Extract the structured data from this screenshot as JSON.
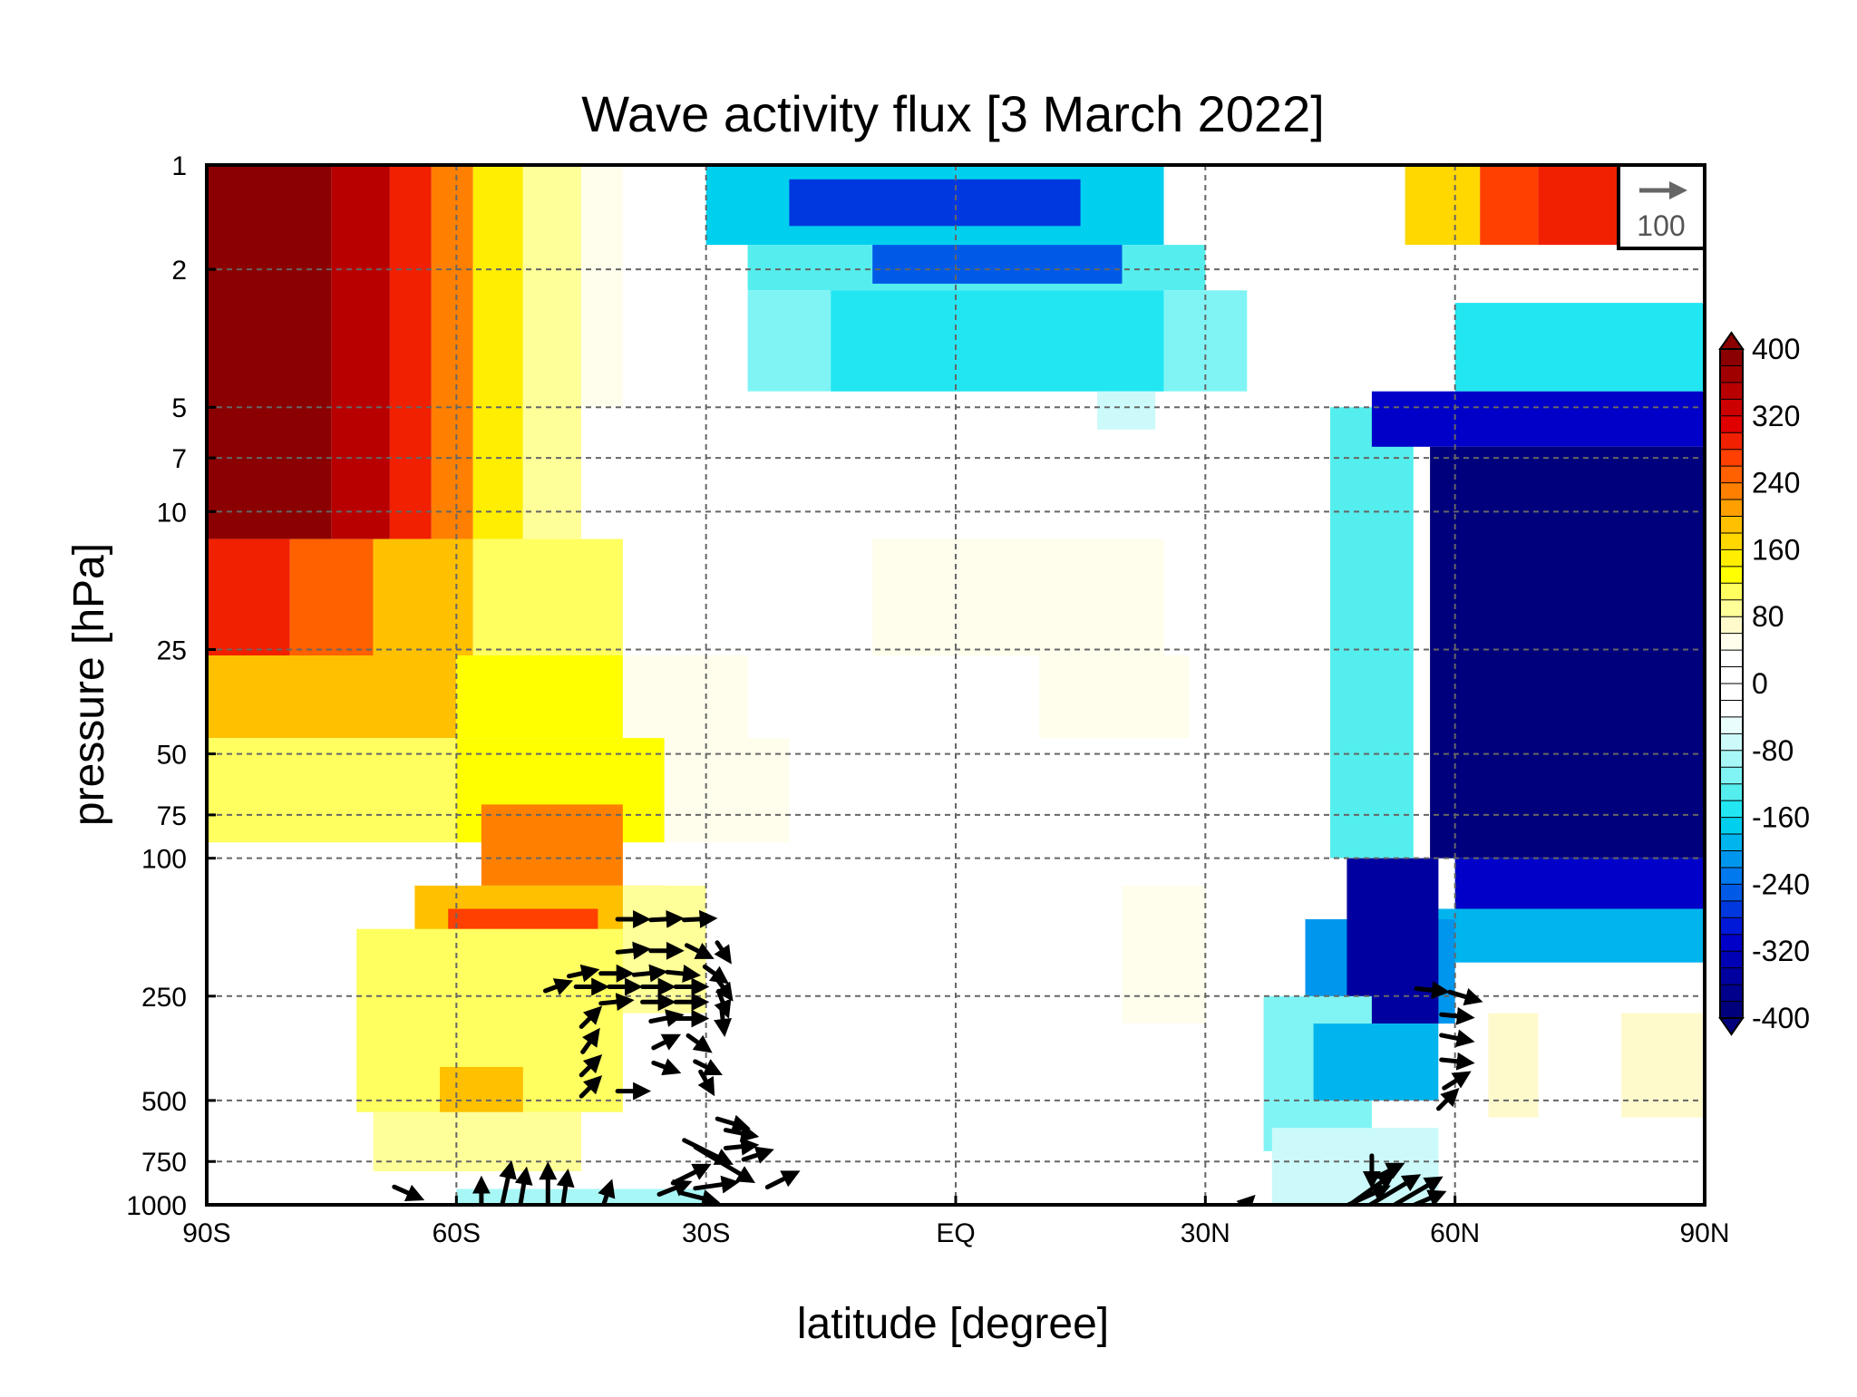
{
  "chart_data": {
    "type": "heatmap",
    "title": "Wave activity flux [3 March 2022]",
    "xlabel": "latitude [degree]",
    "ylabel": "pressure [hPa]",
    "x_range": [
      -90,
      90
    ],
    "y_range_hPa": [
      1000,
      1
    ],
    "y_scale": "log",
    "grid": true,
    "x_ticks": [
      {
        "value": -90,
        "label": "90S"
      },
      {
        "value": -60,
        "label": "60S"
      },
      {
        "value": -30,
        "label": "30S"
      },
      {
        "value": 0,
        "label": "EQ"
      },
      {
        "value": 30,
        "label": "30N"
      },
      {
        "value": 60,
        "label": "60N"
      },
      {
        "value": 90,
        "label": "90N"
      }
    ],
    "y_ticks": [
      {
        "value": 1,
        "label": "1"
      },
      {
        "value": 2,
        "label": "2"
      },
      {
        "value": 5,
        "label": "5"
      },
      {
        "value": 7,
        "label": "7"
      },
      {
        "value": 10,
        "label": "10"
      },
      {
        "value": 25,
        "label": "25"
      },
      {
        "value": 50,
        "label": "50"
      },
      {
        "value": 75,
        "label": "75"
      },
      {
        "value": 100,
        "label": "100"
      },
      {
        "value": 250,
        "label": "250"
      },
      {
        "value": 500,
        "label": "500"
      },
      {
        "value": 750,
        "label": "750"
      },
      {
        "value": 1000,
        "label": "1000"
      }
    ],
    "colorbar": {
      "range": [
        -400,
        400
      ],
      "step": 20,
      "labels": [
        "400",
        "320",
        "240",
        "160",
        "80",
        "0",
        "-80",
        "-160",
        "-240",
        "-320",
        "-400"
      ],
      "colors": [
        "#8b0000",
        "#a00000",
        "#b80000",
        "#cc0000",
        "#e00000",
        "#f02000",
        "#ff4000",
        "#ff6000",
        "#ff8000",
        "#ffa000",
        "#ffc000",
        "#ffd800",
        "#ffee00",
        "#ffff00",
        "#ffff60",
        "#ffff99",
        "#fffacc",
        "#fffdec",
        "#ffffff",
        "#ffffff",
        "#ffffff",
        "#ffffff",
        "#eafdfd",
        "#ccfafa",
        "#a8f7f7",
        "#80f4f4",
        "#55eeee",
        "#22e6f2",
        "#00d0ee",
        "#00b4ee",
        "#0096ee",
        "#0078ee",
        "#005ae6",
        "#0038e0",
        "#0018d8",
        "#0000c8",
        "#0000b4",
        "#0000a0",
        "#00008c",
        "#00007c"
      ]
    },
    "reference_vector": {
      "label": "100",
      "color": "#666666"
    },
    "field_regions": [
      {
        "lat": [
          -90,
          -75
        ],
        "p": [
          1,
          12
        ],
        "value": 400
      },
      {
        "lat": [
          -75,
          -68
        ],
        "p": [
          1,
          12
        ],
        "value": 360
      },
      {
        "lat": [
          -68,
          -63
        ],
        "p": [
          1,
          12
        ],
        "value": 300
      },
      {
        "lat": [
          -63,
          -58
        ],
        "p": [
          1,
          12
        ],
        "value": 240
      },
      {
        "lat": [
          -58,
          -52
        ],
        "p": [
          1,
          12
        ],
        "value": 160
      },
      {
        "lat": [
          -52,
          -45
        ],
        "p": [
          1,
          12
        ],
        "value": 100
      },
      {
        "lat": [
          -45,
          -40
        ],
        "p": [
          1,
          5
        ],
        "value": 60
      },
      {
        "lat": [
          -90,
          -80
        ],
        "p": [
          12,
          26
        ],
        "value": 300
      },
      {
        "lat": [
          -80,
          -70
        ],
        "p": [
          12,
          26
        ],
        "value": 260
      },
      {
        "lat": [
          -70,
          -58
        ],
        "p": [
          12,
          26
        ],
        "value": 200
      },
      {
        "lat": [
          -58,
          -40
        ],
        "p": [
          12,
          26
        ],
        "value": 120
      },
      {
        "lat": [
          -90,
          -60
        ],
        "p": [
          26,
          45
        ],
        "value": 200
      },
      {
        "lat": [
          -60,
          -40
        ],
        "p": [
          26,
          45
        ],
        "value": 130
      },
      {
        "lat": [
          -40,
          -25
        ],
        "p": [
          26,
          45
        ],
        "value": 60
      },
      {
        "lat": [
          -90,
          -60
        ],
        "p": [
          45,
          90
        ],
        "value": 110
      },
      {
        "lat": [
          -60,
          -35
        ],
        "p": [
          45,
          90
        ],
        "value": 140
      },
      {
        "lat": [
          -35,
          -20
        ],
        "p": [
          45,
          90
        ],
        "value": 60
      },
      {
        "lat": [
          -57,
          -40
        ],
        "p": [
          70,
          120
        ],
        "value": 240
      },
      {
        "lat": [
          -65,
          -35
        ],
        "p": [
          120,
          180
        ],
        "value": 200
      },
      {
        "lat": [
          -61,
          -43
        ],
        "p": [
          140,
          200
        ],
        "value": 280
      },
      {
        "lat": [
          -60,
          -47
        ],
        "p": [
          200,
          400
        ],
        "value": 380
      },
      {
        "lat": [
          -66,
          -43
        ],
        "p": [
          200,
          400
        ],
        "value": 220
      },
      {
        "lat": [
          -72,
          -40
        ],
        "p": [
          160,
          540
        ],
        "value": 120
      },
      {
        "lat": [
          -40,
          -30
        ],
        "p": [
          120,
          280
        ],
        "value": 90
      },
      {
        "lat": [
          -62,
          -52
        ],
        "p": [
          400,
          600
        ],
        "value": 200
      },
      {
        "lat": [
          -70,
          -45
        ],
        "p": [
          540,
          800
        ],
        "value": 100
      },
      {
        "lat": [
          -10,
          25
        ],
        "p": [
          12,
          26
        ],
        "value": 60
      },
      {
        "lat": [
          10,
          28
        ],
        "p": [
          26,
          45
        ],
        "value": 60
      },
      {
        "lat": [
          20,
          30
        ],
        "p": [
          120,
          300
        ],
        "value": 60
      },
      {
        "lat": [
          -60,
          -30
        ],
        "p": [
          900,
          1000
        ],
        "value": -80
      },
      {
        "lat": [
          -30,
          25
        ],
        "p": [
          1,
          1.7
        ],
        "value": -160
      },
      {
        "lat": [
          -20,
          15
        ],
        "p": [
          1.1,
          1.5
        ],
        "value": -260
      },
      {
        "lat": [
          -25,
          30
        ],
        "p": [
          1.7,
          2.3
        ],
        "value": -120
      },
      {
        "lat": [
          -10,
          20
        ],
        "p": [
          1.7,
          2.2
        ],
        "value": -240
      },
      {
        "lat": [
          -25,
          35
        ],
        "p": [
          2.3,
          4.5
        ],
        "value": -100
      },
      {
        "lat": [
          -15,
          25
        ],
        "p": [
          2.3,
          4.5
        ],
        "value": -140
      },
      {
        "lat": [
          17,
          24
        ],
        "p": [
          4.5,
          5.8
        ],
        "value": -60
      },
      {
        "lat": [
          54,
          63
        ],
        "p": [
          1,
          1.7
        ],
        "value": 180
      },
      {
        "lat": [
          63,
          70
        ],
        "p": [
          1,
          1.7
        ],
        "value": 280
      },
      {
        "lat": [
          70,
          90
        ],
        "p": [
          1,
          1.7
        ],
        "value": 300
      },
      {
        "lat": [
          60,
          90
        ],
        "p": [
          2.5,
          4.5
        ],
        "value": -140
      },
      {
        "lat": [
          45,
          55
        ],
        "p": [
          5,
          100
        ],
        "value": -120
      },
      {
        "lat": [
          50,
          90
        ],
        "p": [
          4.5,
          6.5
        ],
        "value": -300
      },
      {
        "lat": [
          57,
          90
        ],
        "p": [
          6.5,
          100
        ],
        "value": -380
      },
      {
        "lat": [
          60,
          90
        ],
        "p": [
          100,
          140
        ],
        "value": -300
      },
      {
        "lat": [
          58,
          90
        ],
        "p": [
          140,
          200
        ],
        "value": -180
      },
      {
        "lat": [
          42,
          60
        ],
        "p": [
          150,
          300
        ],
        "value": -200
      },
      {
        "lat": [
          47,
          58
        ],
        "p": [
          100,
          300
        ],
        "value": -340
      },
      {
        "lat": [
          37,
          50
        ],
        "p": [
          250,
          700
        ],
        "value": -100
      },
      {
        "lat": [
          43,
          58
        ],
        "p": [
          300,
          500
        ],
        "value": -180
      },
      {
        "lat": [
          38,
          58
        ],
        "p": [
          600,
          1000
        ],
        "value": -70
      },
      {
        "lat": [
          64,
          70
        ],
        "p": [
          280,
          560
        ],
        "value": 80
      },
      {
        "lat": [
          80,
          90
        ],
        "p": [
          280,
          560
        ],
        "value": 80
      }
    ],
    "vectors": [
      {
        "lat": -39,
        "p": 150,
        "u": 1.0,
        "v": 0.0
      },
      {
        "lat": -35,
        "p": 150,
        "u": 1.0,
        "v": 0.05
      },
      {
        "lat": -31,
        "p": 150,
        "u": 1.0,
        "v": 0.05
      },
      {
        "lat": -39,
        "p": 185,
        "u": 1.0,
        "v": 0.1
      },
      {
        "lat": -35,
        "p": 185,
        "u": 1.0,
        "v": 0.0
      },
      {
        "lat": -31,
        "p": 185,
        "u": 0.8,
        "v": -0.4
      },
      {
        "lat": -28,
        "p": 185,
        "u": 0.4,
        "v": -0.6
      },
      {
        "lat": -45,
        "p": 215,
        "u": 0.9,
        "v": 0.2
      },
      {
        "lat": -41,
        "p": 215,
        "u": 1.0,
        "v": 0.0
      },
      {
        "lat": -37,
        "p": 215,
        "u": 1.0,
        "v": 0.1
      },
      {
        "lat": -33,
        "p": 215,
        "u": 1.0,
        "v": -0.1
      },
      {
        "lat": -29,
        "p": 215,
        "u": 0.7,
        "v": -0.5
      },
      {
        "lat": -48,
        "p": 235,
        "u": 0.8,
        "v": 0.3
      },
      {
        "lat": -44,
        "p": 235,
        "u": 1.0,
        "v": 0.0
      },
      {
        "lat": -40,
        "p": 235,
        "u": 1.0,
        "v": 0.0
      },
      {
        "lat": -36,
        "p": 235,
        "u": 1.0,
        "v": 0.0
      },
      {
        "lat": -32,
        "p": 235,
        "u": 1.0,
        "v": 0.0
      },
      {
        "lat": -28,
        "p": 235,
        "u": 0.5,
        "v": -0.7
      },
      {
        "lat": -41,
        "p": 260,
        "u": 1.0,
        "v": 0.1
      },
      {
        "lat": -36,
        "p": 260,
        "u": 1.0,
        "v": 0.0
      },
      {
        "lat": -32,
        "p": 260,
        "u": 1.0,
        "v": 0.0
      },
      {
        "lat": -28,
        "p": 260,
        "u": 0.3,
        "v": -0.8
      },
      {
        "lat": -44,
        "p": 290,
        "u": 0.6,
        "v": 0.6
      },
      {
        "lat": -35,
        "p": 290,
        "u": 1.0,
        "v": 0.2
      },
      {
        "lat": -32,
        "p": 290,
        "u": 1.0,
        "v": 0.0
      },
      {
        "lat": -28,
        "p": 290,
        "u": 0.1,
        "v": -0.9
      },
      {
        "lat": -44,
        "p": 340,
        "u": 0.5,
        "v": 0.7
      },
      {
        "lat": -35,
        "p": 340,
        "u": 0.8,
        "v": 0.4
      },
      {
        "lat": -31,
        "p": 340,
        "u": 0.7,
        "v": -0.5
      },
      {
        "lat": -44,
        "p": 400,
        "u": 0.6,
        "v": 0.6
      },
      {
        "lat": -35,
        "p": 400,
        "u": 0.8,
        "v": -0.3
      },
      {
        "lat": -30,
        "p": 400,
        "u": 0.8,
        "v": -0.4
      },
      {
        "lat": -44,
        "p": 460,
        "u": 0.6,
        "v": 0.6
      },
      {
        "lat": -39,
        "p": 470,
        "u": 1.0,
        "v": 0.0
      },
      {
        "lat": -30,
        "p": 440,
        "u": 0.4,
        "v": -0.7
      },
      {
        "lat": 57,
        "p": 240,
        "u": 1.0,
        "v": -0.1
      },
      {
        "lat": 61,
        "p": 250,
        "u": 1.0,
        "v": -0.3
      },
      {
        "lat": 60,
        "p": 285,
        "u": 1.0,
        "v": -0.1
      },
      {
        "lat": 60,
        "p": 330,
        "u": 1.0,
        "v": -0.2
      },
      {
        "lat": 60,
        "p": 385,
        "u": 1.0,
        "v": -0.1
      },
      {
        "lat": 60,
        "p": 440,
        "u": 0.8,
        "v": 0.5
      },
      {
        "lat": 59,
        "p": 500,
        "u": 0.6,
        "v": 0.6
      },
      {
        "lat": -27,
        "p": 580,
        "u": 1.0,
        "v": -0.3
      },
      {
        "lat": -26,
        "p": 620,
        "u": 1.0,
        "v": -0.2
      },
      {
        "lat": -26,
        "p": 680,
        "u": 1.0,
        "v": 0.1
      },
      {
        "lat": -24,
        "p": 720,
        "u": 0.9,
        "v": 0.3
      },
      {
        "lat": -30,
        "p": 700,
        "u": 1.6,
        "v": -0.8
      },
      {
        "lat": -28,
        "p": 760,
        "u": 2.0,
        "v": -1.2
      },
      {
        "lat": -32,
        "p": 820,
        "u": 1.2,
        "v": 0.6
      },
      {
        "lat": -29,
        "p": 880,
        "u": 1.4,
        "v": 0.2
      },
      {
        "lat": -34,
        "p": 900,
        "u": 1.0,
        "v": 0.4
      },
      {
        "lat": -31,
        "p": 950,
        "u": 1.2,
        "v": -0.3
      },
      {
        "lat": -21,
        "p": 850,
        "u": 1.0,
        "v": 0.5
      },
      {
        "lat": -66,
        "p": 920,
        "u": 0.9,
        "v": -0.4
      },
      {
        "lat": -57,
        "p": 940,
        "u": 0.0,
        "v": 1.0
      },
      {
        "lat": -54,
        "p": 880,
        "u": 0.3,
        "v": 1.4
      },
      {
        "lat": -52,
        "p": 900,
        "u": 0.2,
        "v": 1.2
      },
      {
        "lat": -49,
        "p": 880,
        "u": 0.0,
        "v": 1.3
      },
      {
        "lat": -47,
        "p": 930,
        "u": 0.2,
        "v": 1.4
      },
      {
        "lat": -42,
        "p": 950,
        "u": 0.3,
        "v": 0.9
      },
      {
        "lat": 50,
        "p": 790,
        "u": 0.0,
        "v": -1.0
      },
      {
        "lat": 52,
        "p": 800,
        "u": 0.8,
        "v": 0.4
      },
      {
        "lat": 50,
        "p": 900,
        "u": 1.4,
        "v": 1.0
      },
      {
        "lat": 52,
        "p": 930,
        "u": 2.0,
        "v": 1.2
      },
      {
        "lat": 54,
        "p": 960,
        "u": 2.4,
        "v": 1.4
      },
      {
        "lat": 48,
        "p": 980,
        "u": 2.2,
        "v": 1.0
      },
      {
        "lat": 56,
        "p": 980,
        "u": 1.4,
        "v": 0.6
      },
      {
        "lat": 35,
        "p": 990,
        "u": 0.3,
        "v": 0.3
      }
    ]
  }
}
